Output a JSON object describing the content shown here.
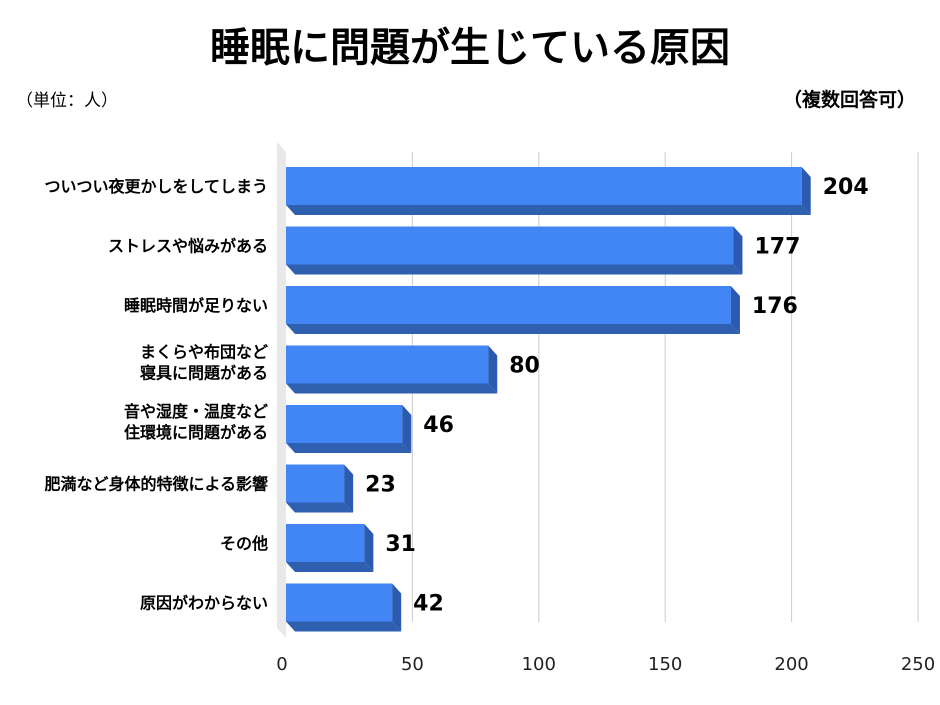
{
  "chart_data": {
    "type": "bar",
    "orientation": "horizontal",
    "title": "睡眠に問題が生じている原因",
    "unit_label": "（単位：人）",
    "note": "（複数回答可）",
    "categories": [
      [
        "ついつい夜更かしをしてしまう"
      ],
      [
        "ストレスや悩みがある"
      ],
      [
        "睡眠時間が足りない"
      ],
      [
        "まくらや布団など",
        "寝具に問題がある"
      ],
      [
        "音や湿度・温度など",
        "住環境に問題がある"
      ],
      [
        "肥満など身体的特徴による影響"
      ],
      [
        "その他"
      ],
      [
        "原因がわからない"
      ]
    ],
    "values": [
      204,
      177,
      176,
      80,
      46,
      23,
      31,
      42
    ],
    "xlim": [
      0,
      250
    ],
    "xticks": [
      "0",
      "50",
      "100",
      "150",
      "200",
      "250"
    ],
    "grid": true,
    "bar_color": "#4285f4"
  }
}
